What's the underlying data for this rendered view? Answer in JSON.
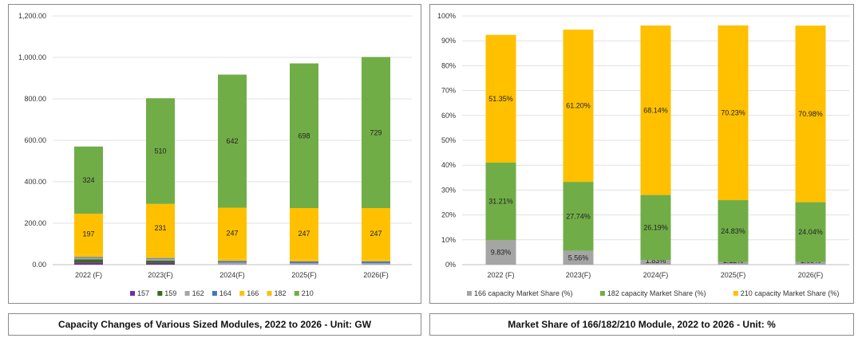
{
  "chart_data": [
    {
      "type": "bar",
      "stacked": true,
      "caption": "Capacity Changes of Various Sized Modules, 2022 to 2026 - Unit: GW",
      "categories": [
        "2022 (F)",
        "2023(F)",
        "2024(F)",
        "2025(F)",
        "2026(F)"
      ],
      "ylim": [
        0,
        1200
      ],
      "yticks": [
        "0.00",
        "200.00",
        "400.00",
        "600.00",
        "800.00",
        "1,000.00",
        "1,200.00"
      ],
      "grid": true,
      "legend_position": "bottom",
      "series": [
        {
          "name": "157",
          "color": "#7030a0",
          "values": [
            10,
            8,
            0,
            0,
            0
          ]
        },
        {
          "name": "159",
          "color": "#3a6b1f",
          "values": [
            15,
            12,
            0,
            0,
            0
          ]
        },
        {
          "name": "162",
          "color": "#a5a5a5",
          "values": [
            8,
            8,
            10,
            8,
            8
          ]
        },
        {
          "name": "164",
          "color": "#4472c4",
          "values": [
            4,
            4,
            8,
            8,
            8
          ]
        },
        {
          "name": "166",
          "color": "#ffc000",
          "values": [
            12,
            30,
            10,
            10,
            10
          ]
        },
        {
          "name": "182",
          "color": "#ffc000",
          "values": [
            197,
            231,
            247,
            247,
            247
          ],
          "labels": [
            "197",
            "231",
            "247",
            "247",
            "247"
          ]
        },
        {
          "name": "210",
          "color": "#70ad47",
          "values": [
            324,
            510,
            642,
            698,
            729
          ],
          "labels": [
            "324",
            "510",
            "642",
            "698",
            "729"
          ]
        }
      ]
    },
    {
      "type": "bar",
      "stacked": true,
      "caption": "Market Share of 166/182/210 Module, 2022 to 2026 - Unit: %",
      "categories": [
        "2022 (F)",
        "2023(F)",
        "2024(F)",
        "2025(F)",
        "2026(F)"
      ],
      "ylim": [
        0,
        100
      ],
      "yticks": [
        "0%",
        "10%",
        "20%",
        "30%",
        "40%",
        "50%",
        "60%",
        "70%",
        "80%",
        "90%",
        "100%"
      ],
      "grid": true,
      "legend_position": "bottom",
      "series": [
        {
          "name": "166 capacity Market Share (%)",
          "color": "#a5a5a5",
          "values": [
            9.83,
            5.56,
            1.83,
            1.12,
            1.09
          ],
          "labels": [
            "9.83%",
            "5.56%",
            "1.83%",
            "1.12%",
            "1.09%"
          ]
        },
        {
          "name": "182 capacity Market Share (%)",
          "color": "#70ad47",
          "values": [
            31.21,
            27.74,
            26.19,
            24.83,
            24.04
          ],
          "labels": [
            "31.21%",
            "27.74%",
            "26.19%",
            "24.83%",
            "24.04%"
          ]
        },
        {
          "name": "210 capacity Market Share (%)",
          "color": "#ffc000",
          "values": [
            51.35,
            61.2,
            68.14,
            70.23,
            70.98
          ],
          "labels": [
            "51.35%",
            "61.20%",
            "68.14%",
            "70.23%",
            "70.98%"
          ]
        }
      ]
    }
  ]
}
